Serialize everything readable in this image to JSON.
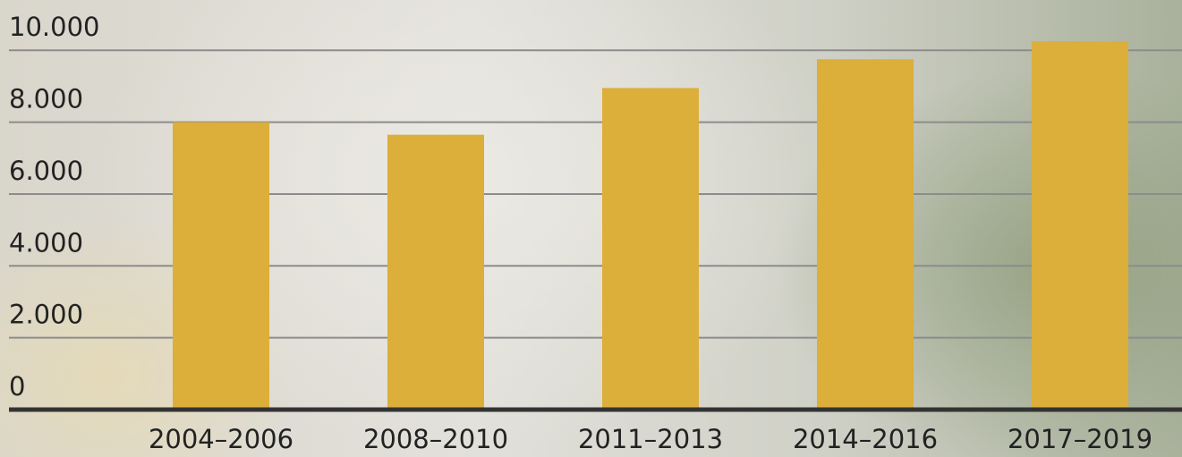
{
  "chart_data": {
    "type": "bar",
    "categories": [
      "2004–2006",
      "2008–2010",
      "2011–2013",
      "2014–2016",
      "2017–2019"
    ],
    "values": [
      8000,
      7650,
      8950,
      9750,
      10250
    ],
    "color": "#dcae3a",
    "ylim": [
      0,
      11400
    ],
    "yticks": [
      0,
      {
        "value": 2000,
        "label": "2.000"
      },
      {
        "value": 4000,
        "label": "4.000"
      },
      {
        "value": 6000,
        "label": "6.000"
      },
      {
        "value": 8000,
        "label": "8.000"
      },
      {
        "value": 10000,
        "label": "10.000"
      }
    ],
    "grid": true
  }
}
